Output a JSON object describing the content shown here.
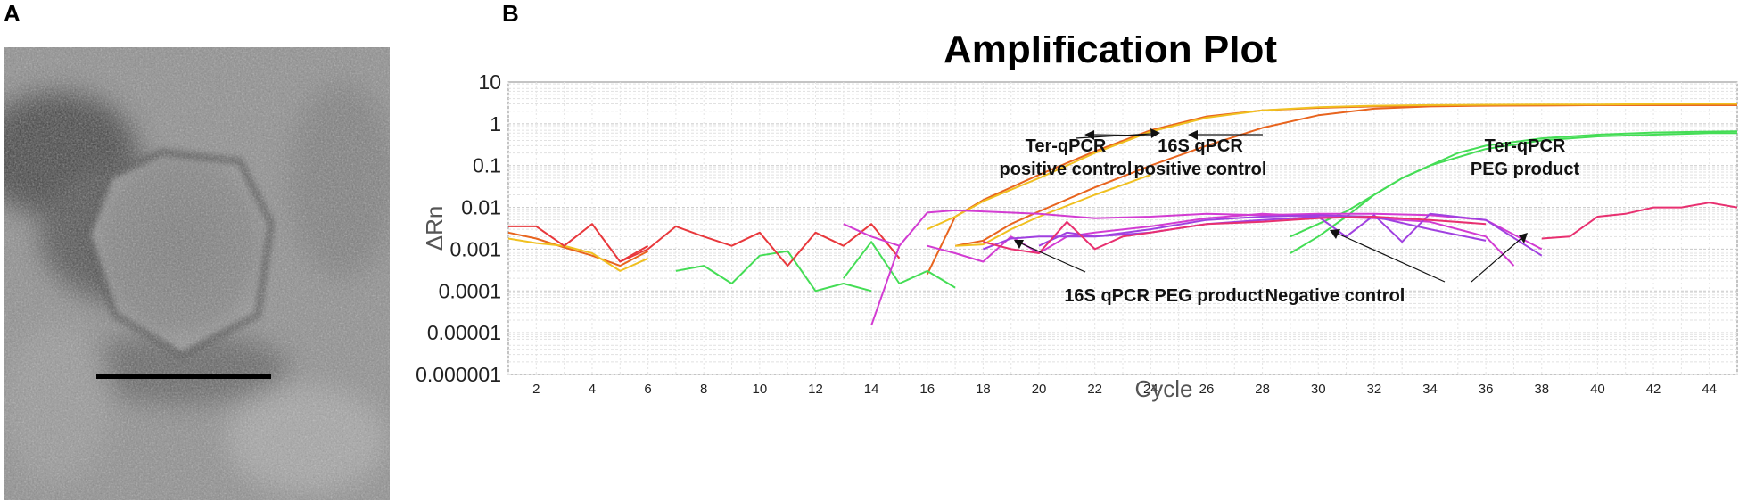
{
  "figure": {
    "panel_a_letter": "A",
    "panel_b_letter": "B"
  },
  "chart_data": {
    "type": "line",
    "title": "Amplification Plot",
    "xlabel": "Cycle",
    "ylabel": "ΔRn",
    "y_scale": "log",
    "xlim": [
      1,
      45
    ],
    "ylim": [
      1e-06,
      10
    ],
    "x_ticks": [
      2,
      4,
      6,
      8,
      10,
      12,
      14,
      16,
      18,
      20,
      22,
      24,
      26,
      28,
      30,
      32,
      34,
      36,
      38,
      40,
      42,
      44
    ],
    "y_ticks": [
      10,
      1,
      0.1,
      0.01,
      0.001,
      0.0001,
      1e-05,
      1e-06
    ],
    "y_tick_labels": [
      "10",
      "1",
      "0.1",
      "0.01",
      "0.001",
      "0.0001",
      "0.00001",
      "0.000001"
    ],
    "grid": true,
    "colors": {
      "orange": "#e8641e",
      "red": "#e8383c",
      "yellow": "#f0c020",
      "green": "#44dd55",
      "magenta": "#d23cd2",
      "purple": "#a040e0",
      "pink": "#e83070"
    },
    "annotations": [
      {
        "lines": [
          "Ter-qPCR",
          "positive control"
        ]
      },
      {
        "lines": [
          "16S qPCR",
          "positive control"
        ]
      },
      {
        "lines": [
          "Ter-qPCR",
          "PEG product"
        ]
      },
      {
        "lines": [
          "16S qPCR PEG product"
        ]
      },
      {
        "lines": [
          "Negative control"
        ]
      }
    ],
    "series": [
      {
        "color": "orange",
        "x": [
          1,
          2,
          3,
          4,
          5,
          6
        ],
        "y": [
          0.0025,
          0.0018,
          0.0011,
          0.0007,
          0.0004,
          0.0009
        ]
      },
      {
        "color": "orange",
        "x": [
          16,
          17,
          18,
          20,
          22,
          24,
          26,
          28,
          30,
          32,
          34,
          36,
          38,
          40,
          42,
          44,
          45
        ],
        "y": [
          0.00025,
          0.006,
          0.015,
          0.06,
          0.22,
          0.7,
          1.5,
          2.1,
          2.4,
          2.6,
          2.7,
          2.75,
          2.75,
          2.8,
          2.8,
          2.8,
          2.8
        ]
      },
      {
        "color": "orange",
        "x": [
          17,
          18,
          19,
          20,
          22,
          24,
          26,
          28,
          30,
          32,
          34,
          36,
          38,
          40,
          42,
          44,
          45
        ],
        "y": [
          0.0012,
          0.0016,
          0.004,
          0.008,
          0.03,
          0.1,
          0.3,
          0.8,
          1.6,
          2.3,
          2.6,
          2.7,
          2.75,
          2.8,
          2.8,
          2.8,
          2.8
        ]
      },
      {
        "color": "yellow",
        "x": [
          1,
          2,
          3,
          4,
          5,
          6
        ],
        "y": [
          0.0018,
          0.0014,
          0.0012,
          0.0008,
          0.0003,
          0.0006
        ]
      },
      {
        "color": "yellow",
        "x": [
          16,
          17,
          18,
          20,
          22,
          24,
          26,
          28,
          30,
          32,
          34,
          36,
          38,
          40,
          42,
          44,
          45
        ],
        "y": [
          0.003,
          0.006,
          0.014,
          0.05,
          0.2,
          0.65,
          1.4,
          2.1,
          2.5,
          2.7,
          2.8,
          2.85,
          2.9,
          2.9,
          2.95,
          3.0,
          3.0
        ]
      },
      {
        "color": "yellow",
        "x": [
          17,
          18,
          19,
          20,
          22,
          24
        ],
        "y": [
          0.0012,
          0.0013,
          0.003,
          0.006,
          0.02,
          0.06
        ]
      },
      {
        "color": "green",
        "x": [
          7,
          8,
          9,
          10,
          11,
          12,
          13,
          14
        ],
        "y": [
          0.0003,
          0.0004,
          0.00015,
          0.0007,
          0.0009,
          0.0001,
          0.00015,
          0.0001
        ]
      },
      {
        "color": "green",
        "x": [
          13,
          14,
          15,
          16,
          17
        ],
        "y": [
          0.0002,
          0.0015,
          0.00015,
          0.0003,
          0.00012
        ]
      },
      {
        "color": "green",
        "x": [
          29,
          30,
          31,
          32,
          33,
          34,
          35,
          36,
          38,
          40,
          42,
          44,
          45
        ],
        "y": [
          0.0008,
          0.002,
          0.006,
          0.02,
          0.05,
          0.1,
          0.2,
          0.3,
          0.45,
          0.55,
          0.62,
          0.65,
          0.66
        ]
      },
      {
        "color": "green",
        "x": [
          29,
          30,
          31,
          32,
          33,
          34,
          36,
          38,
          40,
          42,
          44,
          45
        ],
        "y": [
          0.002,
          0.004,
          0.008,
          0.02,
          0.05,
          0.1,
          0.25,
          0.4,
          0.5,
          0.55,
          0.6,
          0.6
        ]
      },
      {
        "color": "red",
        "x": [
          1,
          2,
          3,
          4,
          5,
          6
        ],
        "y": [
          0.0035,
          0.0035,
          0.0012,
          0.004,
          0.0005,
          0.0012
        ]
      },
      {
        "color": "red",
        "x": [
          5,
          6,
          7,
          8,
          9,
          10,
          11,
          12,
          13,
          14,
          15
        ],
        "y": [
          0.0005,
          0.001,
          0.0035,
          0.002,
          0.0012,
          0.0025,
          0.0004,
          0.0025,
          0.0012,
          0.004,
          0.0006
        ]
      },
      {
        "color": "magenta",
        "x": [
          14,
          15,
          16,
          17,
          18,
          20,
          22,
          24,
          26,
          28,
          30,
          32,
          34,
          36,
          38
        ],
        "y": [
          1.5e-05,
          0.0012,
          0.0075,
          0.0085,
          0.008,
          0.007,
          0.0055,
          0.006,
          0.007,
          0.0065,
          0.007,
          0.007,
          0.0065,
          0.005,
          0.001
        ]
      },
      {
        "color": "magenta",
        "x": [
          16,
          17,
          18,
          19,
          20,
          21,
          22,
          24,
          26,
          28,
          30,
          32,
          34,
          36,
          37
        ],
        "y": [
          0.0012,
          0.0008,
          0.0005,
          0.002,
          0.0008,
          0.002,
          0.0025,
          0.0035,
          0.0055,
          0.007,
          0.006,
          0.0055,
          0.0045,
          0.002,
          0.0004
        ]
      },
      {
        "color": "magenta",
        "x": [
          13,
          14,
          15
        ],
        "y": [
          0.004,
          0.002,
          0.0012
        ]
      },
      {
        "color": "purple",
        "x": [
          18,
          19,
          20,
          22,
          24,
          26,
          28,
          30,
          31,
          32,
          33,
          34,
          36,
          38
        ],
        "y": [
          0.001,
          0.0018,
          0.002,
          0.002,
          0.0025,
          0.004,
          0.005,
          0.006,
          0.002,
          0.0065,
          0.0015,
          0.007,
          0.005,
          0.0007
        ]
      },
      {
        "color": "purple",
        "x": [
          20,
          21,
          22,
          24,
          26,
          28,
          30,
          32,
          34,
          36
        ],
        "y": [
          0.0012,
          0.0025,
          0.002,
          0.003,
          0.005,
          0.006,
          0.0065,
          0.006,
          0.003,
          0.0016
        ]
      },
      {
        "color": "pink",
        "x": [
          18,
          19,
          20,
          21,
          22,
          23,
          24,
          26,
          28,
          30,
          32,
          34,
          36
        ],
        "y": [
          0.0015,
          0.001,
          0.0008,
          0.0045,
          0.001,
          0.002,
          0.0025,
          0.004,
          0.0045,
          0.0055,
          0.006,
          0.005,
          0.004
        ]
      },
      {
        "color": "pink",
        "x": [
          38,
          39,
          40,
          41,
          42,
          43,
          44,
          45
        ],
        "y": [
          0.0018,
          0.002,
          0.006,
          0.007,
          0.01,
          0.01,
          0.013,
          0.01
        ]
      }
    ]
  }
}
